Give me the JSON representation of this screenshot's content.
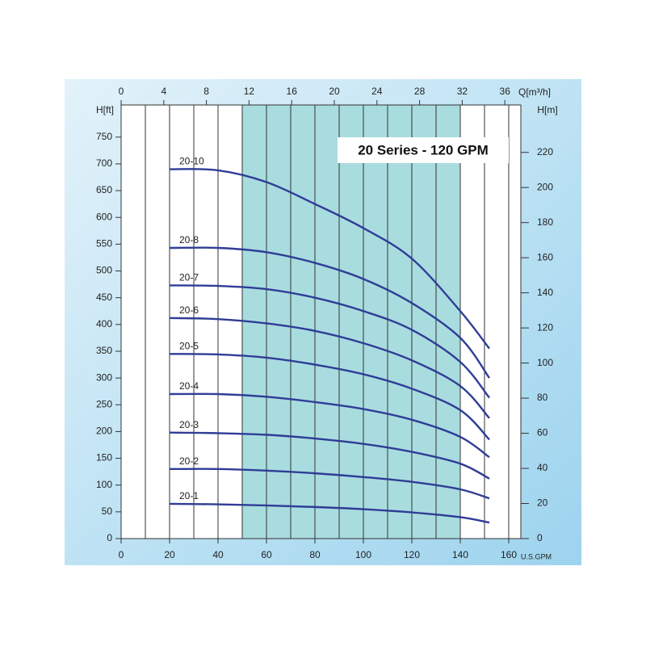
{
  "chart_data": {
    "type": "line",
    "title": "20 Series - 120 GPM",
    "x_label": "U.S.GPM",
    "x2_label": "Q[m³/h]",
    "y_label": "H[ft]",
    "y2_label": "H[m]",
    "x": [
      20,
      40,
      60,
      80,
      100,
      120,
      140,
      152
    ],
    "series": [
      {
        "name": "20-10",
        "color": "#2f3d96",
        "values": [
          690,
          688,
          666,
          625,
          580,
          523,
          425,
          355
        ]
      },
      {
        "name": "20-8",
        "color": "#2f3d96",
        "values": [
          543,
          543,
          535,
          515,
          485,
          440,
          375,
          300
        ]
      },
      {
        "name": "20-7",
        "color": "#2f3d96",
        "values": [
          473,
          472,
          466,
          450,
          425,
          390,
          330,
          263
        ]
      },
      {
        "name": "20-6",
        "color": "#2f3d96",
        "values": [
          412,
          410,
          402,
          388,
          365,
          333,
          285,
          225
        ]
      },
      {
        "name": "20-5",
        "color": "#2f3d96",
        "values": [
          345,
          344,
          338,
          325,
          307,
          280,
          240,
          185
        ]
      },
      {
        "name": "20-4",
        "color": "#2f3d96",
        "values": [
          270,
          270,
          265,
          255,
          242,
          222,
          190,
          152
        ]
      },
      {
        "name": "20-3",
        "color": "#2f3d96",
        "values": [
          198,
          197,
          194,
          187,
          177,
          162,
          140,
          112
        ]
      },
      {
        "name": "20-2",
        "color": "#2f3d96",
        "values": [
          130,
          130,
          127,
          122,
          115,
          106,
          92,
          75
        ]
      },
      {
        "name": "20-1",
        "color": "#2f3d96",
        "values": [
          65,
          64,
          62,
          59,
          55,
          49,
          40,
          30
        ]
      }
    ],
    "xlim": [
      0,
      165
    ],
    "xticks": [
      0,
      20,
      40,
      60,
      80,
      100,
      120,
      140,
      160
    ],
    "xgrid": [
      0,
      10,
      20,
      30,
      40,
      50,
      60,
      70,
      80,
      90,
      100,
      110,
      120,
      130,
      140,
      150,
      160
    ],
    "x2lim": [
      0,
      37.5
    ],
    "x2ticks": [
      0,
      4,
      8,
      12,
      16,
      20,
      24,
      28,
      32,
      36
    ],
    "ylim": [
      0,
      810
    ],
    "yticks": [
      0,
      50,
      100,
      150,
      200,
      250,
      300,
      350,
      400,
      450,
      500,
      550,
      600,
      650,
      700,
      750
    ],
    "y2lim": [
      0,
      247
    ],
    "y2ticks": [
      0,
      20,
      40,
      60,
      80,
      100,
      120,
      140,
      160,
      180,
      200,
      220
    ],
    "shaded_range": [
      50,
      140
    ],
    "shade_color": "#a9dcdf"
  }
}
